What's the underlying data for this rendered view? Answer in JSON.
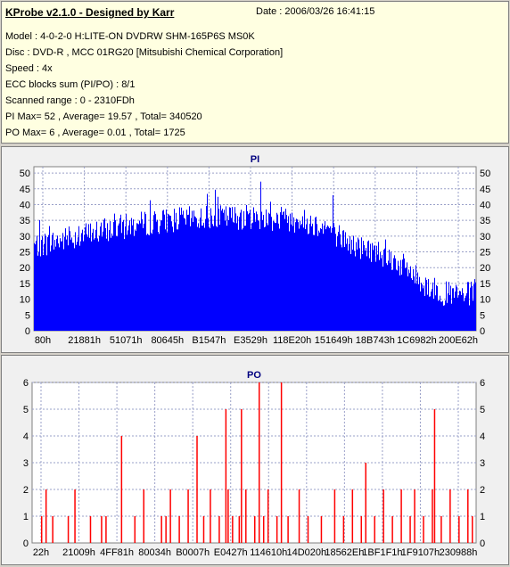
{
  "info": {
    "title": "KProbe v2.1.0 - Designed by Karr",
    "date": "Date : 2006/03/26 16:41:15",
    "lines": [
      "Model : 4-0-2-0 H:LITE-ON DVDRW SHM-165P6S MS0K",
      "Disc : DVD-R , MCC 01RG20   [Mitsubishi Chemical Corporation]",
      "Speed : 4x",
      "ECC blocks sum (PI/PO) : 8/1",
      "Scanned range : 0 - 2310FDh",
      "PI Max= 52 , Average= 19.57 , Total= 340520",
      "PO Max= 6 , Average= 0.01 , Total= 1725"
    ]
  },
  "chart_data": [
    {
      "type": "bar",
      "title": "PI",
      "color": "#0000ff",
      "ylim": [
        0,
        52
      ],
      "yticks": [
        0,
        5,
        10,
        15,
        20,
        25,
        30,
        35,
        40,
        45,
        50
      ],
      "xlabels": [
        "80h",
        "21881h",
        "51071h",
        "80645h",
        "B1547h",
        "E3529h",
        "118E20h",
        "151649h",
        "18B743h",
        "1C6982h",
        "200E62h"
      ],
      "grid": true,
      "profile": [
        [
          0,
          27
        ],
        [
          0.04,
          28
        ],
        [
          0.1,
          30
        ],
        [
          0.2,
          33
        ],
        [
          0.3,
          35
        ],
        [
          0.4,
          36
        ],
        [
          0.5,
          36
        ],
        [
          0.6,
          35
        ],
        [
          0.66,
          33
        ],
        [
          0.72,
          27
        ],
        [
          0.78,
          25
        ],
        [
          0.84,
          20
        ],
        [
          0.88,
          15
        ],
        [
          0.92,
          12
        ],
        [
          0.96,
          11
        ],
        [
          1.0,
          12
        ]
      ],
      "max": 52,
      "average": 19.57
    },
    {
      "type": "bar",
      "title": "PO",
      "color": "#ff0000",
      "ylim": [
        0,
        6
      ],
      "yticks": [
        0,
        1,
        2,
        3,
        4,
        5,
        6
      ],
      "xlabels": [
        "22h",
        "21009h",
        "4FF81h",
        "80034h",
        "B0007h",
        "E0427h",
        "114610h",
        "14D020h",
        "18562Eh",
        "1BF1F1h",
        "1F9107h",
        "230988h"
      ],
      "grid": true,
      "spikes": [
        [
          0.02,
          1
        ],
        [
          0.03,
          2
        ],
        [
          0.045,
          1
        ],
        [
          0.08,
          1
        ],
        [
          0.095,
          2
        ],
        [
          0.13,
          1
        ],
        [
          0.155,
          1
        ],
        [
          0.165,
          1
        ],
        [
          0.2,
          4
        ],
        [
          0.23,
          1
        ],
        [
          0.25,
          2
        ],
        [
          0.29,
          1
        ],
        [
          0.3,
          1
        ],
        [
          0.31,
          2
        ],
        [
          0.33,
          1
        ],
        [
          0.35,
          2
        ],
        [
          0.37,
          4
        ],
        [
          0.385,
          1
        ],
        [
          0.4,
          2
        ],
        [
          0.42,
          1
        ],
        [
          0.435,
          5
        ],
        [
          0.44,
          2
        ],
        [
          0.45,
          1
        ],
        [
          0.465,
          1
        ],
        [
          0.47,
          5
        ],
        [
          0.48,
          2
        ],
        [
          0.5,
          1
        ],
        [
          0.51,
          6
        ],
        [
          0.52,
          1
        ],
        [
          0.53,
          2
        ],
        [
          0.55,
          1
        ],
        [
          0.56,
          6
        ],
        [
          0.575,
          1
        ],
        [
          0.6,
          2
        ],
        [
          0.62,
          1
        ],
        [
          0.65,
          1
        ],
        [
          0.68,
          2
        ],
        [
          0.7,
          1
        ],
        [
          0.72,
          2
        ],
        [
          0.74,
          1
        ],
        [
          0.75,
          3
        ],
        [
          0.77,
          1
        ],
        [
          0.79,
          2
        ],
        [
          0.81,
          1
        ],
        [
          0.83,
          2
        ],
        [
          0.85,
          1
        ],
        [
          0.86,
          2
        ],
        [
          0.88,
          1
        ],
        [
          0.9,
          2
        ],
        [
          0.905,
          5
        ],
        [
          0.92,
          1
        ],
        [
          0.94,
          2
        ],
        [
          0.96,
          1
        ],
        [
          0.98,
          2
        ],
        [
          0.99,
          1
        ]
      ],
      "max": 6,
      "average": 0.01
    }
  ]
}
